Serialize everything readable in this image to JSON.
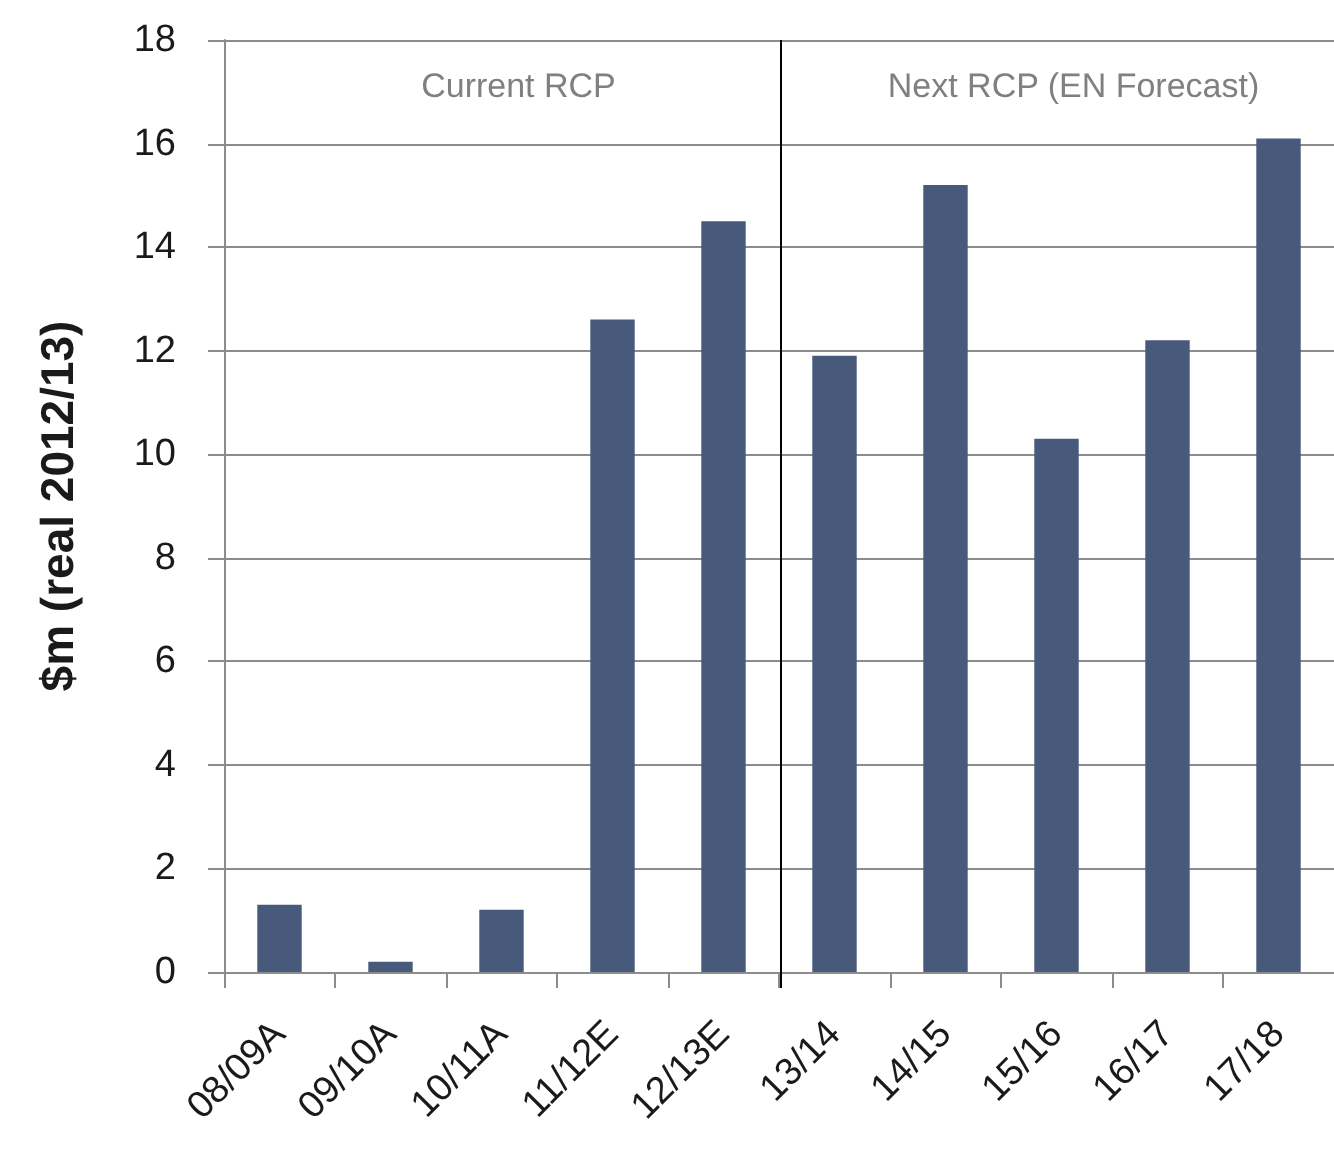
{
  "chart_data": {
    "type": "bar",
    "ylabel": "$m (real 2012/13)",
    "categories": [
      "08/09A",
      "09/10A",
      "10/11A",
      "11/12E",
      "12/13E",
      "13/14",
      "14/15",
      "15/16",
      "16/17",
      "17/18"
    ],
    "values": [
      1.3,
      0.2,
      1.2,
      12.6,
      14.5,
      11.9,
      15.2,
      10.3,
      12.2,
      16.1
    ],
    "color": "#475a7b",
    "ylim": [
      0,
      18
    ],
    "yticks": [
      0,
      2,
      4,
      6,
      8,
      10,
      12,
      14,
      16,
      18
    ],
    "grid": "y",
    "ref_lines": [
      {
        "axis": "x",
        "value": "13/14",
        "color": "#000000"
      }
    ],
    "annotations": [
      "Current RCP",
      "Next RCP (EN Forecast)"
    ]
  }
}
